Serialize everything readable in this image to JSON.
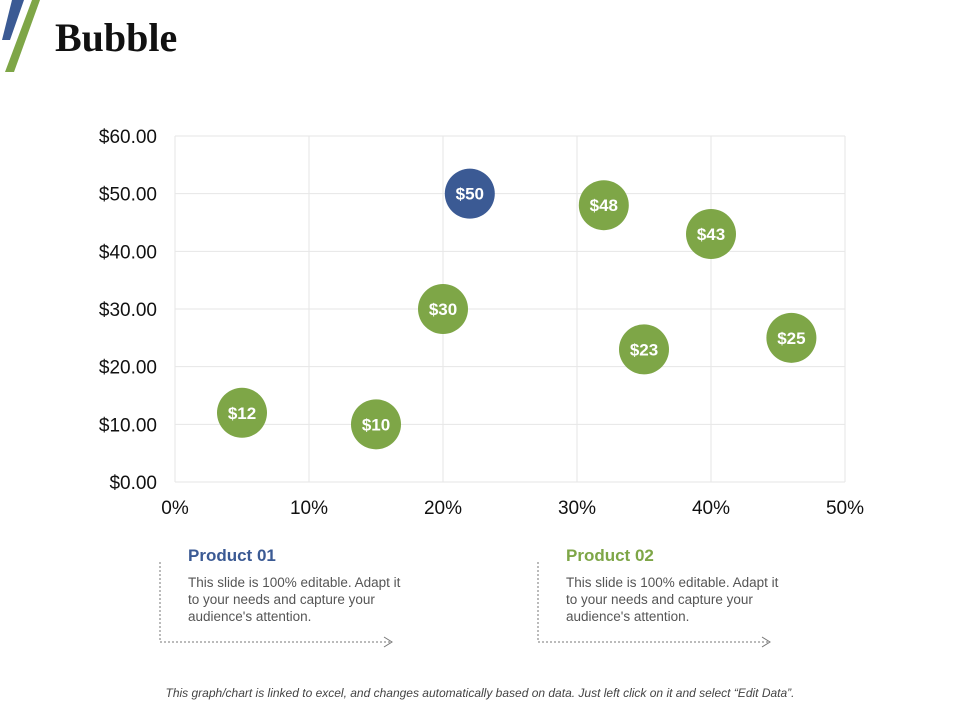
{
  "title": "Bubble",
  "colors": {
    "accent_blue": "#3B5A94",
    "accent_green": "#7EA647",
    "grid": "#e6e6e6"
  },
  "chart_data": {
    "type": "scatter",
    "title": "",
    "xlabel": "",
    "ylabel": "",
    "xlim": [
      0,
      50
    ],
    "ylim": [
      0,
      60
    ],
    "x_ticks": [
      "0%",
      "10%",
      "20%",
      "30%",
      "40%",
      "50%"
    ],
    "y_ticks": [
      "$0.00",
      "$10.00",
      "$20.00",
      "$30.00",
      "$40.00",
      "$50.00",
      "$60.00"
    ],
    "grid": true,
    "series": [
      {
        "color": "#7EA647",
        "points": [
          {
            "x": 5,
            "y": 12,
            "label": "$12"
          },
          {
            "x": 15,
            "y": 10,
            "label": "$10"
          },
          {
            "x": 20,
            "y": 30,
            "label": "$30"
          },
          {
            "x": 32,
            "y": 48,
            "label": "$48"
          },
          {
            "x": 35,
            "y": 23,
            "label": "$23"
          },
          {
            "x": 40,
            "y": 43,
            "label": "$43"
          },
          {
            "x": 46,
            "y": 25,
            "label": "$25"
          }
        ]
      },
      {
        "color": "#3B5A94",
        "points": [
          {
            "x": 22,
            "y": 50,
            "label": "$50"
          }
        ]
      }
    ]
  },
  "products": [
    {
      "title": "Product 01",
      "color": "#3B5A94",
      "text": "This slide is 100% editable. Adapt it to your needs and capture your audience's attention."
    },
    {
      "title": "Product 02",
      "color": "#7EA647",
      "text": "This slide is 100% editable. Adapt it to your needs and capture your audience's attention."
    }
  ],
  "footnote": "This graph/chart is linked to excel, and changes automatically based on data. Just left click on it and select “Edit Data”."
}
